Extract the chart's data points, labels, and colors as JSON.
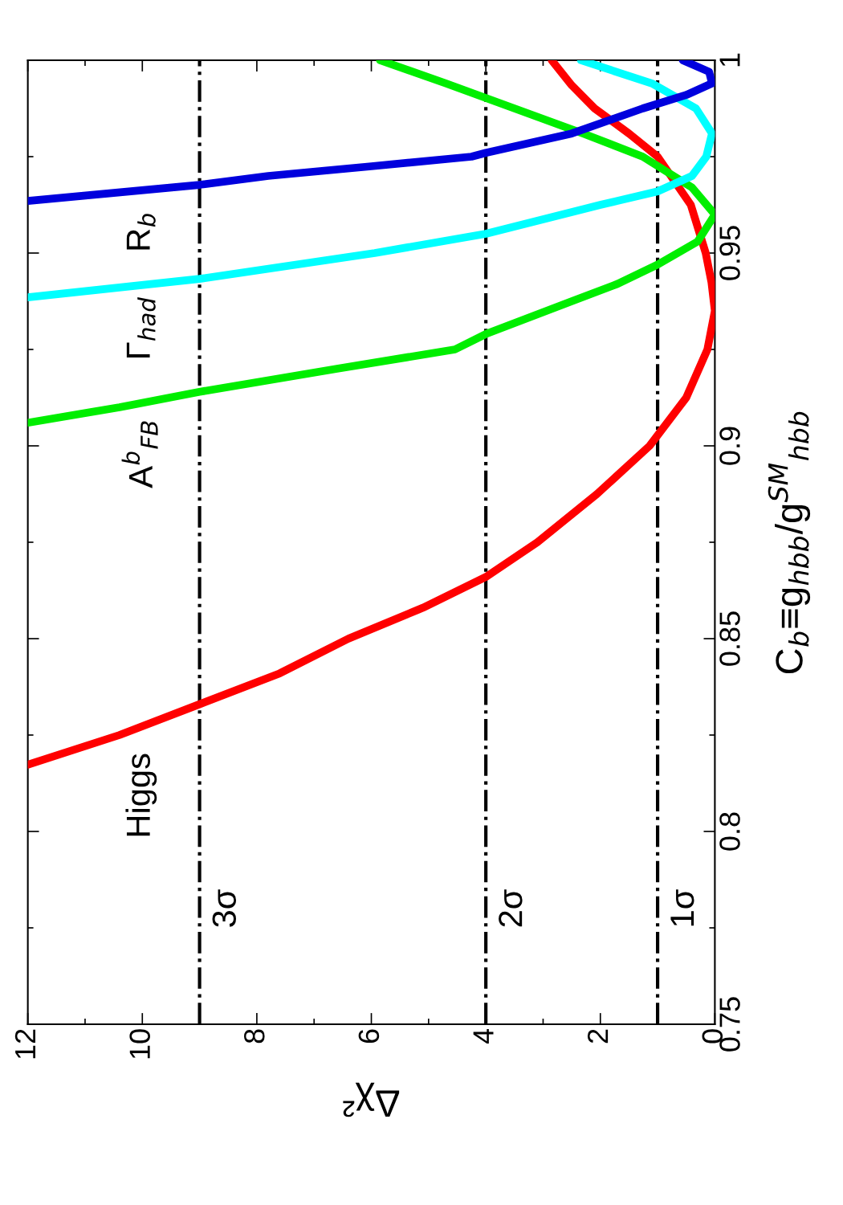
{
  "chart_data": {
    "type": "line",
    "xlabel": "Δχ²",
    "ylabel": "C$_{b}$≡g$_{hbb}$/g$^{SM}$$_{hbb}$",
    "xlim": [
      12,
      0
    ],
    "xticks": [
      12,
      10,
      8,
      6,
      4,
      2,
      0
    ],
    "ylim": [
      0.75,
      1
    ],
    "yticks": [
      0.75,
      0.8,
      0.85,
      0.9,
      0.95,
      1
    ],
    "grid": false,
    "legend": false,
    "line_style": "solid",
    "marker": "none",
    "series": [
      {
        "color": "#ff0000",
        "x": [
          12,
          10.4,
          9,
          7.6,
          6.4,
          5.1,
          4,
          3.1,
          2.06,
          1.14,
          0.5,
          0.13,
          0.0,
          0.06,
          0.16,
          0.42,
          1.0,
          1.5,
          2.1,
          2.5,
          2.85
        ],
        "values": [
          0.8173,
          0.825,
          0.833,
          0.841,
          0.85,
          0.858,
          0.866,
          0.875,
          0.8875,
          0.9,
          0.9125,
          0.925,
          0.935,
          0.9425,
          0.95,
          0.9625,
          0.975,
          0.981,
          0.9875,
          0.9935,
          1.0
        ]
      },
      {
        "color": "#00ee00",
        "x": [
          12,
          10.4,
          9,
          6.6,
          4.54,
          4,
          2.5,
          1.7,
          1,
          0.3,
          0.0,
          0.4,
          1.26,
          2.3,
          3.5,
          4.7,
          5.85
        ],
        "values": [
          0.906,
          0.91,
          0.914,
          0.92,
          0.925,
          0.929,
          0.9375,
          0.942,
          0.947,
          0.953,
          0.96,
          0.967,
          0.975,
          0.981,
          0.9875,
          0.994,
          1.0
        ]
      },
      {
        "color": "#00ffff",
        "x": [
          12,
          9,
          5.94,
          4,
          2.0,
          1,
          0.4,
          0.15,
          0.05,
          0.33,
          1.1,
          2.34
        ],
        "values": [
          0.9385,
          0.9433,
          0.95,
          0.955,
          0.9625,
          0.966,
          0.97,
          0.975,
          0.981,
          0.9875,
          0.994,
          1.0
        ]
      },
      {
        "color": "#0000dd",
        "x": [
          12,
          9,
          7.8,
          6,
          4.25,
          4,
          2.5,
          1.26,
          0.5,
          0.05,
          0.1,
          0.56
        ],
        "values": [
          0.9635,
          0.9677,
          0.97,
          0.9725,
          0.975,
          0.976,
          0.981,
          0.9875,
          0.991,
          0.994,
          0.997,
          1.0
        ]
      }
    ],
    "annotations": [
      "Higgs",
      "A$^{b}$$_{FB}$",
      "Γ$_{had}$",
      "R$_{b}$"
    ],
    "ref_lines": [
      {
        "axis": "x",
        "value": 9,
        "label": "3σ",
        "color": "#000000",
        "line_style": "dashdot"
      },
      {
        "axis": "x",
        "value": 4,
        "label": "2σ",
        "color": "#000000",
        "line_style": "dashdot"
      },
      {
        "axis": "x",
        "value": 1,
        "label": "1σ",
        "color": "#000000",
        "line_style": "dashdot"
      }
    ]
  }
}
